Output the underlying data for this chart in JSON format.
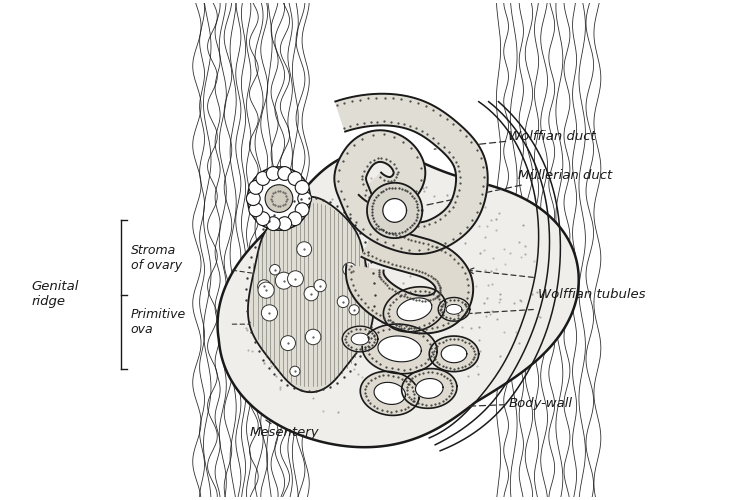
{
  "bg_color": "#ffffff",
  "fig_width": 7.3,
  "fig_height": 5.0,
  "dpi": 100,
  "labels": {
    "wolffian_duct": "Wolffian duct",
    "mullerian_duct": "Müllerian duct",
    "wolffian_tubules": "Wolffian tubules",
    "body_wall": "Body-wall",
    "genital_ridge": "Genital\nridge",
    "stroma_ovary": "Stroma\nof ovary",
    "primitive_ova": "Primitive\nova",
    "mesentery": "Mesentery"
  },
  "line_color": "#1a1a1a",
  "text_color": "#1a1a1a",
  "font_size": 9.5,
  "lw_main": 1.5,
  "lw_thin": 0.6,
  "lw_tissue": 0.8
}
